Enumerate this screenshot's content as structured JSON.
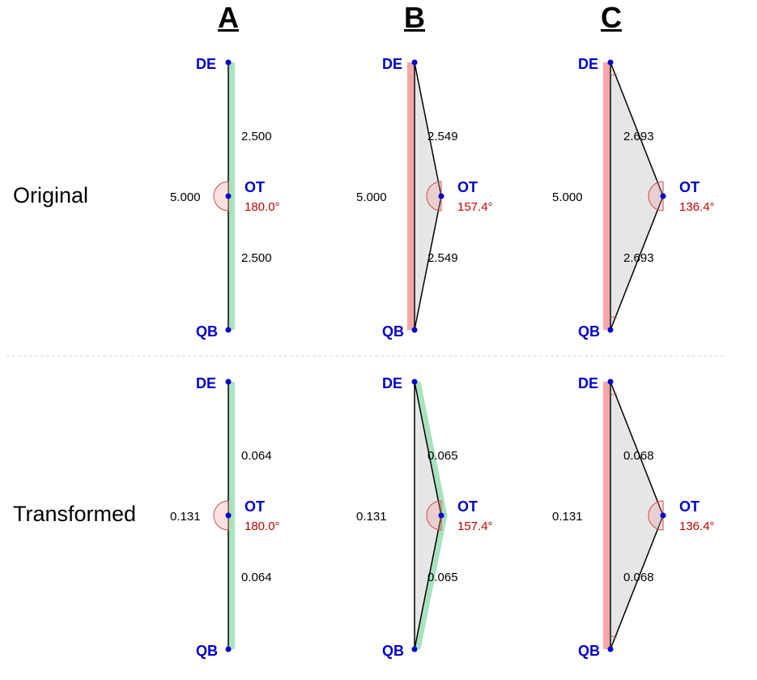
{
  "columns": [
    "A",
    "B",
    "C"
  ],
  "rows": [
    "Original",
    "Transformed"
  ],
  "point_labels": {
    "top": "DE",
    "middle": "OT",
    "bottom": "QB"
  },
  "colors": {
    "point": "#0000cc",
    "angle_text": "#c00000",
    "highlight_green": "#a8e2c0",
    "highlight_red": "#f4a6a6",
    "fill": "#e6e6e6"
  },
  "cells": [
    [
      {
        "base": "5.000",
        "upper": "2.500",
        "lower": "2.500",
        "angle": "180.0°",
        "highlight": "green-base"
      },
      {
        "base": "5.000",
        "upper": "2.549",
        "lower": "2.549",
        "angle": "157.4°",
        "highlight": "red-base"
      },
      {
        "base": "5.000",
        "upper": "2.693",
        "lower": "2.693",
        "angle": "136.4°",
        "highlight": "red-base"
      }
    ],
    [
      {
        "base": "0.131",
        "upper": "0.064",
        "lower": "0.064",
        "angle": "180.0°",
        "highlight": "green-base"
      },
      {
        "base": "0.131",
        "upper": "0.065",
        "lower": "0.065",
        "angle": "157.4°",
        "highlight": "green-sides"
      },
      {
        "base": "0.131",
        "upper": "0.068",
        "lower": "0.068",
        "angle": "136.4°",
        "highlight": "red-base"
      }
    ]
  ]
}
